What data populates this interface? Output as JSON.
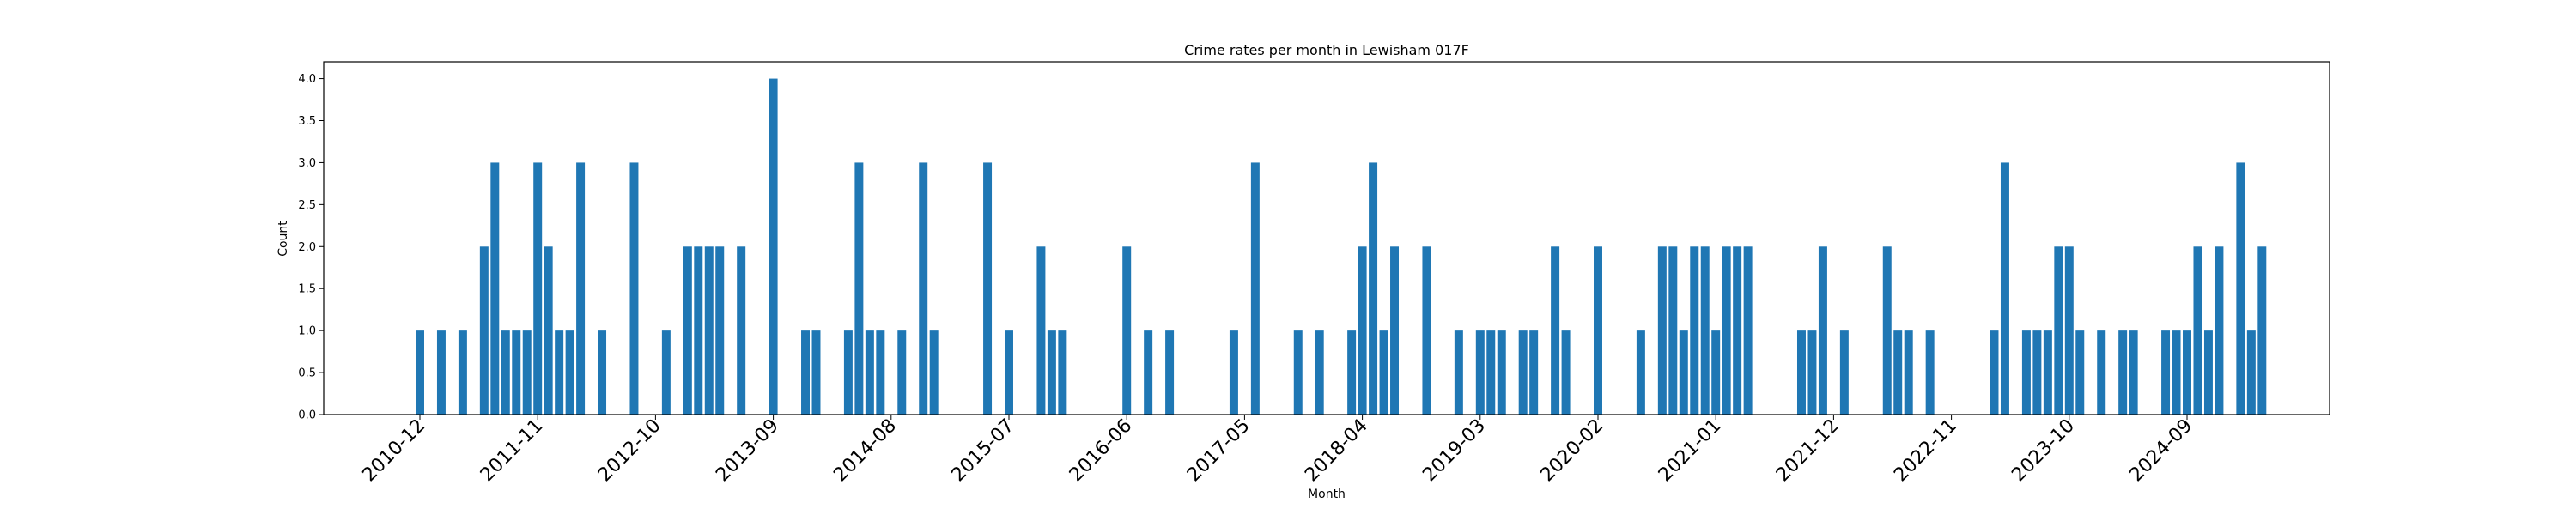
{
  "chart_data": {
    "type": "bar",
    "title": "Crime rates per month in Lewisham 017F",
    "xlabel": "Month",
    "ylabel": "Count",
    "ylim": [
      0,
      4.2
    ],
    "grid": false,
    "color": "#1f77b4",
    "xtick_labels": [
      "2010-12",
      "2011-11",
      "2012-10",
      "2013-09",
      "2014-08",
      "2015-07",
      "2016-06",
      "2017-05",
      "2018-04",
      "2019-03",
      "2020-02",
      "2021-01",
      "2021-12",
      "2022-11",
      "2023-10",
      "2024-09"
    ],
    "ytick_labels": [
      "0.0",
      "0.5",
      "1.0",
      "1.5",
      "2.0",
      "2.5",
      "3.0",
      "3.5",
      "4.0"
    ],
    "series": [
      {
        "data": [
          [
            "2010-12",
            1
          ],
          [
            "2011-02",
            1
          ],
          [
            "2011-04",
            1
          ],
          [
            "2011-06",
            2
          ],
          [
            "2011-07",
            3
          ],
          [
            "2011-08",
            1
          ],
          [
            "2011-09",
            1
          ],
          [
            "2011-10",
            1
          ],
          [
            "2011-11",
            3
          ],
          [
            "2011-12",
            2
          ],
          [
            "2012-01",
            1
          ],
          [
            "2012-02",
            1
          ],
          [
            "2012-03",
            3
          ],
          [
            "2012-05",
            1
          ],
          [
            "2012-08",
            3
          ],
          [
            "2012-11",
            1
          ],
          [
            "2013-01",
            2
          ],
          [
            "2013-02",
            2
          ],
          [
            "2013-03",
            2
          ],
          [
            "2013-04",
            2
          ],
          [
            "2013-06",
            2
          ],
          [
            "2013-09",
            4
          ],
          [
            "2013-12",
            1
          ],
          [
            "2014-01",
            1
          ],
          [
            "2014-04",
            1
          ],
          [
            "2014-05",
            3
          ],
          [
            "2014-06",
            1
          ],
          [
            "2014-07",
            1
          ],
          [
            "2014-09",
            1
          ],
          [
            "2014-11",
            3
          ],
          [
            "2014-12",
            1
          ],
          [
            "2015-05",
            3
          ],
          [
            "2015-07",
            1
          ],
          [
            "2015-10",
            2
          ],
          [
            "2015-11",
            1
          ],
          [
            "2015-12",
            1
          ],
          [
            "2016-06",
            2
          ],
          [
            "2016-08",
            1
          ],
          [
            "2016-10",
            1
          ],
          [
            "2017-04",
            1
          ],
          [
            "2017-06",
            3
          ],
          [
            "2017-10",
            1
          ],
          [
            "2017-12",
            1
          ],
          [
            "2018-03",
            1
          ],
          [
            "2018-04",
            2
          ],
          [
            "2018-05",
            3
          ],
          [
            "2018-06",
            1
          ],
          [
            "2018-07",
            2
          ],
          [
            "2018-10",
            2
          ],
          [
            "2019-01",
            1
          ],
          [
            "2019-03",
            1
          ],
          [
            "2019-04",
            1
          ],
          [
            "2019-05",
            1
          ],
          [
            "2019-07",
            1
          ],
          [
            "2019-08",
            1
          ],
          [
            "2019-10",
            2
          ],
          [
            "2019-11",
            1
          ],
          [
            "2020-02",
            2
          ],
          [
            "2020-06",
            1
          ],
          [
            "2020-08",
            2
          ],
          [
            "2020-09",
            2
          ],
          [
            "2020-10",
            1
          ],
          [
            "2020-11",
            2
          ],
          [
            "2020-12",
            2
          ],
          [
            "2021-01",
            1
          ],
          [
            "2021-02",
            2
          ],
          [
            "2021-03",
            2
          ],
          [
            "2021-04",
            2
          ],
          [
            "2021-09",
            1
          ],
          [
            "2021-10",
            1
          ],
          [
            "2021-11",
            2
          ],
          [
            "2022-01",
            1
          ],
          [
            "2022-05",
            2
          ],
          [
            "2022-06",
            1
          ],
          [
            "2022-07",
            1
          ],
          [
            "2022-09",
            1
          ],
          [
            "2023-03",
            1
          ],
          [
            "2023-04",
            3
          ],
          [
            "2023-06",
            1
          ],
          [
            "2023-07",
            1
          ],
          [
            "2023-08",
            1
          ],
          [
            "2023-09",
            2
          ],
          [
            "2023-10",
            2
          ],
          [
            "2023-11",
            1
          ],
          [
            "2024-01",
            1
          ],
          [
            "2024-03",
            1
          ],
          [
            "2024-04",
            1
          ],
          [
            "2024-07",
            1
          ],
          [
            "2024-08",
            1
          ],
          [
            "2024-09",
            1
          ],
          [
            "2024-10",
            2
          ],
          [
            "2024-11",
            1
          ],
          [
            "2024-12",
            2
          ],
          [
            "2025-02",
            3
          ],
          [
            "2025-03",
            1
          ],
          [
            "2025-04",
            2
          ]
        ]
      }
    ]
  }
}
